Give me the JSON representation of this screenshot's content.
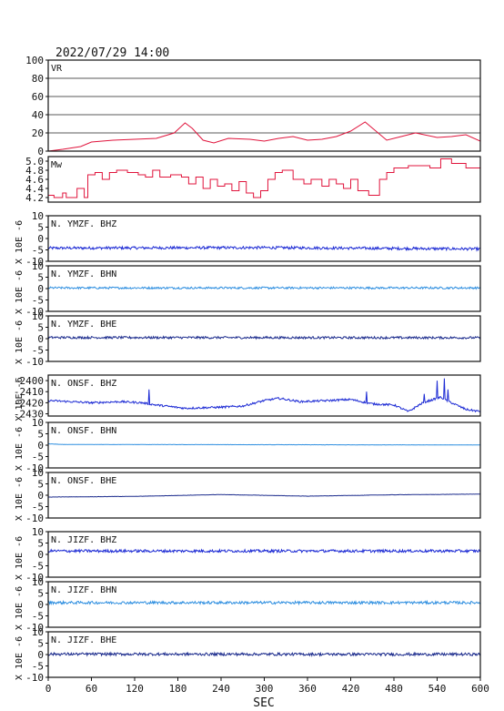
{
  "header": {
    "datetime": "2022/07/29 14:00"
  },
  "chart_data": {
    "type": "line",
    "xlabel": "SEC",
    "x_ticks": [
      "0",
      "60",
      "120",
      "180",
      "240",
      "300",
      "360",
      "420",
      "480",
      "540",
      "600"
    ],
    "xlim": [
      0,
      600
    ],
    "panels": [
      {
        "label": "VR",
        "ylim": [
          0,
          100
        ],
        "ytick_values": [
          0,
          20,
          40,
          60,
          80,
          100
        ],
        "yticks": [
          "0",
          "20",
          "40",
          "60",
          "80",
          "100"
        ],
        "grid": true,
        "color": "#e0143c",
        "x": [
          0,
          20,
          45,
          60,
          90,
          120,
          150,
          175,
          190,
          200,
          215,
          230,
          250,
          280,
          300,
          320,
          340,
          360,
          380,
          400,
          420,
          440,
          455,
          470,
          490,
          510,
          540,
          560,
          580,
          600
        ],
        "y": [
          0,
          2,
          5,
          10,
          12,
          13,
          14,
          20,
          31,
          25,
          12,
          9,
          14,
          13,
          11,
          14,
          16,
          12,
          13,
          16,
          22,
          32,
          22,
          12,
          16,
          20,
          15,
          16,
          18,
          11
        ]
      },
      {
        "label": "Mw",
        "ylim": [
          4.1,
          5.1
        ],
        "ytick_values": [
          4.2,
          4.4,
          4.6,
          4.8,
          5.0
        ],
        "yticks": [
          "4.2",
          "4.4",
          "4.6",
          "4.8",
          "5.0"
        ],
        "grid": false,
        "step": true,
        "color": "#e0143c",
        "x": [
          0,
          8,
          20,
          25,
          40,
          50,
          55,
          65,
          75,
          85,
          95,
          110,
          125,
          135,
          145,
          155,
          170,
          185,
          195,
          205,
          215,
          225,
          235,
          245,
          255,
          265,
          275,
          285,
          295,
          305,
          315,
          325,
          340,
          355,
          365,
          380,
          390,
          400,
          410,
          420,
          430,
          445,
          460,
          470,
          480,
          490,
          500,
          520,
          530,
          545,
          560,
          580,
          600
        ],
        "y": [
          4.25,
          4.2,
          4.3,
          4.2,
          4.4,
          4.2,
          4.7,
          4.75,
          4.6,
          4.75,
          4.8,
          4.75,
          4.7,
          4.65,
          4.8,
          4.65,
          4.7,
          4.65,
          4.5,
          4.65,
          4.4,
          4.6,
          4.45,
          4.5,
          4.35,
          4.55,
          4.3,
          4.2,
          4.35,
          4.6,
          4.75,
          4.8,
          4.6,
          4.5,
          4.6,
          4.45,
          4.6,
          4.5,
          4.4,
          4.6,
          4.35,
          4.25,
          4.6,
          4.75,
          4.85,
          4.85,
          4.9,
          4.9,
          4.85,
          5.05,
          4.95,
          4.85,
          4.8
        ]
      },
      {
        "label": "N. YMZF. BHZ",
        "ylim": [
          -10,
          10
        ],
        "ytick_values": [
          -10,
          -5,
          0,
          5,
          10
        ],
        "yticks": [
          "-10",
          "-5",
          "0",
          "5",
          "10"
        ],
        "ylabel": "X 10E -6",
        "color": "#1c2ad4",
        "baseline": [
          [
            0,
            -4.2
          ],
          [
            300,
            -4.0
          ],
          [
            600,
            -4.6
          ]
        ],
        "noise": 0.6
      },
      {
        "label": "N. YMZF. BHN",
        "ylim": [
          -10,
          10
        ],
        "ytick_values": [
          -10,
          -5,
          0,
          5,
          10
        ],
        "yticks": [
          "-10",
          "-5",
          "0",
          "5",
          "10"
        ],
        "ylabel": "X 10E -6",
        "color": "#2f8fe0",
        "baseline": [
          [
            0,
            0.3
          ],
          [
            600,
            0.3
          ]
        ],
        "noise": 0.45
      },
      {
        "label": "N. YMZF. BHE",
        "ylim": [
          -10,
          10
        ],
        "ytick_values": [
          -10,
          -5,
          0,
          5,
          10
        ],
        "yticks": [
          "-10",
          "-5",
          "0",
          "5",
          "10"
        ],
        "ylabel": "X 10E -6",
        "color": "#1a2a8c",
        "baseline": [
          [
            0,
            0.5
          ],
          [
            600,
            0.4
          ]
        ],
        "noise": 0.5
      },
      {
        "label": "N. ONSF. BHZ",
        "ylim": [
          -2432,
          -2395
        ],
        "ytick_values": [
          -2430,
          -2420,
          -2410,
          -2400
        ],
        "yticks": [
          "-2430",
          "-2420",
          "-2410",
          "-2400"
        ],
        "ylabel": "X 10E -6",
        "color": "#1c2ad4",
        "baseline": [
          [
            0,
            -2418
          ],
          [
            60,
            -2420
          ],
          [
            100,
            -2419
          ],
          [
            130,
            -2420
          ],
          [
            150,
            -2422
          ],
          [
            190,
            -2425
          ],
          [
            240,
            -2424
          ],
          [
            270,
            -2423
          ],
          [
            300,
            -2418
          ],
          [
            320,
            -2416
          ],
          [
            350,
            -2419
          ],
          [
            390,
            -2418
          ],
          [
            420,
            -2417
          ],
          [
            450,
            -2421
          ],
          [
            480,
            -2422
          ],
          [
            500,
            -2428
          ],
          [
            520,
            -2420
          ],
          [
            545,
            -2415
          ],
          [
            560,
            -2420
          ],
          [
            580,
            -2426
          ],
          [
            600,
            -2428
          ]
        ],
        "noise": 0.9,
        "spikes": [
          [
            140,
            -2408
          ],
          [
            442,
            -2410
          ],
          [
            522,
            -2412
          ],
          [
            540,
            -2400
          ],
          [
            550,
            -2398
          ],
          [
            555,
            -2408
          ]
        ]
      },
      {
        "label": "N. ONSF. BHN",
        "ylim": [
          -10,
          10
        ],
        "ytick_values": [
          -10,
          -5,
          0,
          5,
          10
        ],
        "yticks": [
          "-10",
          "-5",
          "0",
          "5",
          "10"
        ],
        "ylabel": "X 10E -6",
        "color": "#2f8fe0",
        "baseline": [
          [
            0,
            0.6
          ],
          [
            20,
            0.3
          ],
          [
            600,
            0.1
          ]
        ],
        "noise": 0.05
      },
      {
        "label": "N. ONSF. BHE",
        "ylim": [
          -10,
          10
        ],
        "ytick_values": [
          -10,
          -5,
          0,
          5,
          10
        ],
        "yticks": [
          "-10",
          "-5",
          "0",
          "5",
          "10"
        ],
        "ylabel": "X 10E -6",
        "color": "#1a2a8c",
        "baseline": [
          [
            0,
            -0.8
          ],
          [
            120,
            -0.5
          ],
          [
            240,
            0.3
          ],
          [
            360,
            -0.4
          ],
          [
            480,
            0.2
          ],
          [
            600,
            0.5
          ]
        ],
        "noise": 0.05
      },
      {
        "label": "N. JIZF. BHZ",
        "ylim": [
          -10,
          10
        ],
        "ytick_values": [
          -10,
          -5,
          0,
          5,
          10
        ],
        "yticks": [
          "-10",
          "-5",
          "0",
          "5",
          "10"
        ],
        "ylabel": "X 10E -6",
        "color": "#1c2ad4",
        "baseline": [
          [
            0,
            1.5
          ],
          [
            600,
            1.5
          ]
        ],
        "noise": 0.6
      },
      {
        "label": "N. JIZF. BHN",
        "ylim": [
          -10,
          10
        ],
        "ytick_values": [
          -10,
          -5,
          0,
          5,
          10
        ],
        "yticks": [
          "-10",
          "-5",
          "0",
          "5",
          "10"
        ],
        "ylabel": "X 10E -6",
        "color": "#2f8fe0",
        "baseline": [
          [
            0,
            0.8
          ],
          [
            600,
            0.8
          ]
        ],
        "noise": 0.6
      },
      {
        "label": "N. JIZF. BHE",
        "ylim": [
          -10,
          10
        ],
        "ytick_values": [
          -10,
          -5,
          0,
          5,
          10
        ],
        "yticks": [
          "-10",
          "-5",
          "0",
          "5",
          "10"
        ],
        "ylabel": "X 10E -6",
        "color": "#1a2a8c",
        "baseline": [
          [
            0,
            0.2
          ],
          [
            600,
            0.1
          ]
        ],
        "noise": 0.6
      }
    ]
  }
}
